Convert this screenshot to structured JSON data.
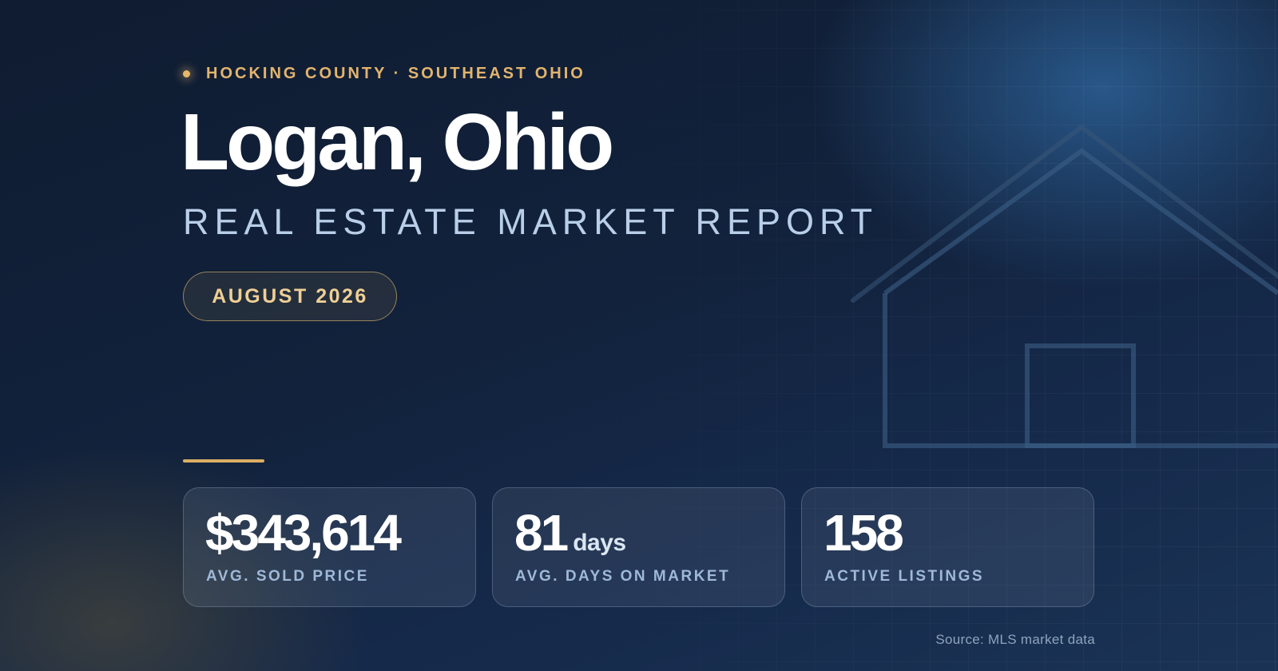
{
  "header": {
    "eyebrow": "HOCKING COUNTY · SOUTHEAST OHIO",
    "title": "Logan, Ohio",
    "subtitle": "REAL ESTATE MARKET REPORT",
    "period": "AUGUST 2026"
  },
  "stats": [
    {
      "value": "$343,614",
      "unit": "",
      "label": "AVG. SOLD PRICE"
    },
    {
      "value": "81",
      "unit": "days",
      "label": "AVG. DAYS ON MARKET"
    },
    {
      "value": "158",
      "unit": "",
      "label": "ACTIVE LISTINGS"
    }
  ],
  "footer": {
    "source": "Source: MLS market data"
  },
  "decor": {
    "background_icon": "house-outline-icon",
    "accent_color": "#e3b46d",
    "background_color": "#12223c"
  }
}
